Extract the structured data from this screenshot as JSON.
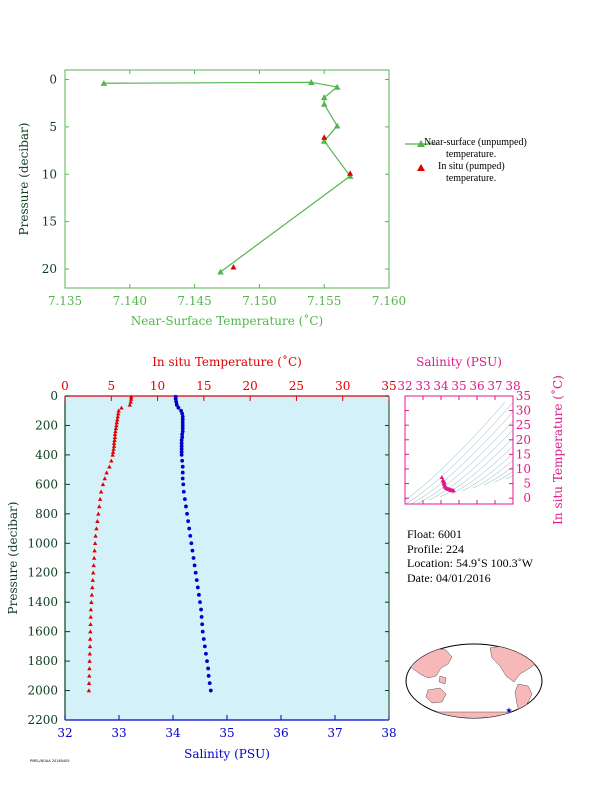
{
  "chart_data": [
    {
      "type": "line",
      "title": "",
      "xlabel": "Near-Surface Temperature (˚C)",
      "ylabel": "Pressure (decibar)",
      "xlim": [
        7.135,
        7.16
      ],
      "ylim": [
        22,
        -1
      ],
      "x_ticks": [
        "7.135",
        "7.140",
        "7.145",
        "7.150",
        "7.155",
        "7.160"
      ],
      "y_ticks": [
        "0",
        "5",
        "10",
        "15",
        "20"
      ],
      "legend_position": "right",
      "grid": false,
      "series": [
        {
          "name": "Near-surface (unpumped) temperature.",
          "color": "#55b54f",
          "x": [
            7.138,
            7.154,
            7.156,
            7.155,
            7.155,
            7.156,
            7.155,
            7.157,
            7.147
          ],
          "y": [
            0.4,
            0.3,
            0.8,
            1.9,
            2.6,
            4.9,
            6.5,
            10.2,
            20.3
          ]
        },
        {
          "name": "In situ (pumped) temperature.",
          "color": "#e00000",
          "x": [
            7.155,
            7.157,
            7.148
          ],
          "y": [
            6.1,
            9.9,
            19.8
          ]
        }
      ]
    },
    {
      "type": "scatter",
      "title": "",
      "xlabel": "Salinity (PSU)",
      "xlabel_top": "In situ Temperature (˚C)",
      "ylabel": "Pressure (decibar)",
      "xlim_salinity": [
        32,
        38
      ],
      "xlim_temperature": [
        0,
        35
      ],
      "ylim": [
        2200,
        0
      ],
      "x_ticks": [
        "32",
        "33",
        "34",
        "35",
        "36",
        "37",
        "38"
      ],
      "x_ticks_top": [
        "0",
        "5",
        "10",
        "15",
        "20",
        "25",
        "30",
        "35"
      ],
      "y_ticks": [
        "0",
        "200",
        "400",
        "600",
        "800",
        "1000",
        "1200",
        "1400",
        "1600",
        "1800",
        "2000",
        "2200"
      ],
      "background": "#d4f0f8",
      "series": [
        {
          "name": "In situ Temperature (˚C)",
          "color": "#e00000",
          "pressure": [
            5,
            20,
            40,
            60,
            80,
            100,
            120,
            140,
            160,
            180,
            200,
            220,
            240,
            260,
            280,
            300,
            320,
            340,
            360,
            380,
            400,
            440,
            480,
            520,
            560,
            600,
            650,
            700,
            750,
            800,
            850,
            900,
            950,
            1000,
            1050,
            1100,
            1150,
            1200,
            1250,
            1300,
            1350,
            1400,
            1450,
            1500,
            1550,
            1600,
            1650,
            1700,
            1750,
            1800,
            1850,
            1900,
            1950,
            2000
          ],
          "value": [
            7.15,
            7.15,
            7.1,
            7.0,
            6.1,
            5.8,
            5.75,
            5.7,
            5.65,
            5.6,
            5.55,
            5.5,
            5.45,
            5.4,
            5.4,
            5.35,
            5.3,
            5.3,
            5.25,
            5.2,
            5.15,
            5.0,
            4.8,
            4.5,
            4.3,
            4.1,
            3.9,
            3.8,
            3.7,
            3.6,
            3.5,
            3.4,
            3.3,
            3.25,
            3.2,
            3.15,
            3.1,
            3.05,
            3.0,
            2.95,
            2.9,
            2.85,
            2.8,
            2.78,
            2.76,
            2.74,
            2.72,
            2.7,
            2.68,
            2.66,
            2.64,
            2.62,
            2.6,
            2.58
          ]
        },
        {
          "name": "Salinity (PSU)",
          "color": "#0000cc",
          "pressure": [
            5,
            20,
            40,
            60,
            80,
            100,
            120,
            140,
            160,
            180,
            200,
            220,
            240,
            260,
            280,
            300,
            320,
            340,
            360,
            380,
            400,
            440,
            480,
            520,
            560,
            600,
            650,
            700,
            750,
            800,
            850,
            900,
            950,
            1000,
            1050,
            1100,
            1150,
            1200,
            1250,
            1300,
            1350,
            1400,
            1450,
            1500,
            1550,
            1600,
            1650,
            1700,
            1750,
            1800,
            1850,
            1900,
            1950,
            2000
          ],
          "value": [
            34.05,
            34.05,
            34.06,
            34.07,
            34.1,
            34.15,
            34.17,
            34.18,
            34.18,
            34.18,
            34.18,
            34.18,
            34.18,
            34.17,
            34.17,
            34.16,
            34.16,
            34.16,
            34.16,
            34.16,
            34.16,
            34.17,
            34.18,
            34.18,
            34.18,
            34.19,
            34.2,
            34.22,
            34.24,
            34.26,
            34.28,
            34.3,
            34.32,
            34.34,
            34.36,
            34.38,
            34.4,
            34.42,
            34.44,
            34.46,
            34.48,
            34.5,
            34.52,
            34.53,
            34.54,
            34.55,
            34.57,
            34.59,
            34.61,
            34.63,
            34.65,
            34.66,
            34.68,
            34.7
          ]
        }
      ]
    },
    {
      "type": "scatter",
      "title": "",
      "xlabel": "Salinity (PSU)",
      "ylabel": "In situ Temperature (˚C)",
      "xlim": [
        32,
        38
      ],
      "ylim": [
        -2,
        35
      ],
      "x_ticks": [
        "32",
        "33",
        "34",
        "35",
        "36",
        "37",
        "38"
      ],
      "y_ticks": [
        "0",
        "5",
        "10",
        "15",
        "20",
        "25",
        "30",
        "35"
      ],
      "color": "#e0198c",
      "series": [
        {
          "name": "",
          "salinity": [
            34.05,
            34.1,
            34.15,
            34.18,
            34.18,
            34.17,
            34.16,
            34.18,
            34.2,
            34.24,
            34.28,
            34.32,
            34.36,
            34.4,
            34.44,
            34.48,
            34.52,
            34.55,
            34.59,
            34.63,
            34.67,
            34.7
          ],
          "temperature": [
            7.15,
            6.1,
            5.8,
            5.6,
            5.45,
            5.35,
            5.2,
            4.8,
            4.2,
            3.8,
            3.6,
            3.4,
            3.25,
            3.15,
            3.05,
            2.95,
            2.85,
            2.78,
            2.72,
            2.68,
            2.62,
            2.58
          ]
        }
      ]
    }
  ],
  "info": {
    "float": "Float:  6001",
    "profile": "Profile:  224",
    "location": "Location:  54.9˚S  100.3˚W",
    "date": "Date:  04/01/2016"
  },
  "legend": {
    "near_surface_line1": "Near-surface (unpumped)",
    "near_surface_line2": "temperature.",
    "in_situ_line1": "In situ (pumped)",
    "in_situ_line2": "temperature."
  },
  "footer": "PMEL/NOAA  20160405",
  "colors": {
    "green": "#55b54f",
    "red": "#e00000",
    "blue": "#0000cc",
    "magenta": "#e0198c",
    "axis_dark": "#0b3d1e",
    "panel_fill": "#d4f0f8",
    "land": "#f6b8b8"
  }
}
